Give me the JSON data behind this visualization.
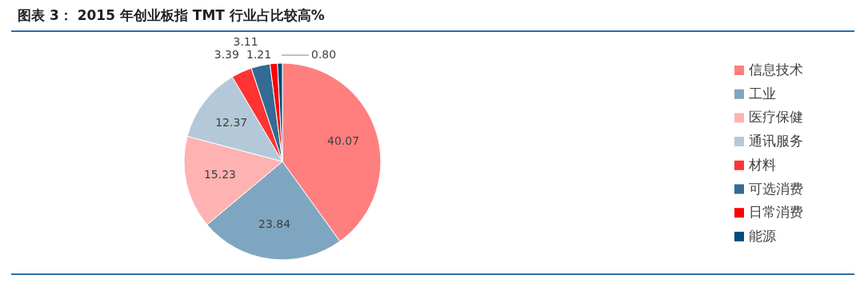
{
  "chart_data": {
    "type": "pie",
    "title": "图表 3：  2015 年创业板指 TMT 行业占比较高%",
    "categories": [
      "信息技术",
      "工业",
      "医疗保健",
      "通讯服务",
      "材料",
      "可选消费",
      "日常消费",
      "能源"
    ],
    "values": [
      40.07,
      23.84,
      15.23,
      12.37,
      3.39,
      3.11,
      1.21,
      0.8
    ],
    "colors": [
      "#ff7f7f",
      "#7fa6c0",
      "#ffb2b2",
      "#b3c9d9",
      "#ff3333",
      "#336b94",
      "#ff0000",
      "#004c80"
    ],
    "value_labels": [
      "40.07",
      "23.84",
      "15.23",
      "12.37",
      "3.39",
      "3.11",
      "1.21",
      "0.80"
    ],
    "legend": "right"
  }
}
